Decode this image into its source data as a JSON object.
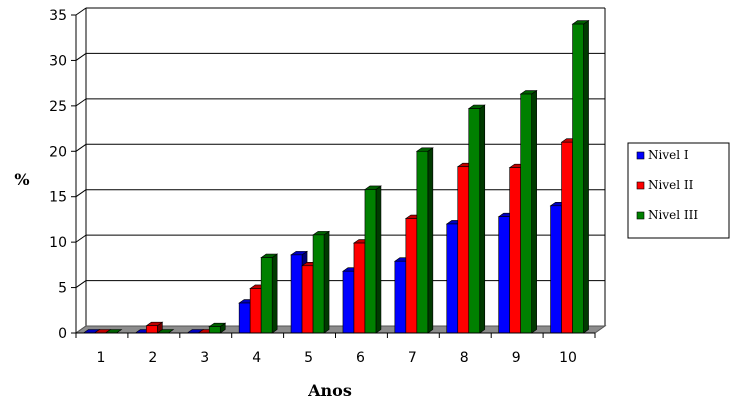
{
  "chart_data": {
    "type": "bar",
    "title": "",
    "xlabel": "Anos",
    "ylabel": "%",
    "categories": [
      "1",
      "2",
      "3",
      "4",
      "5",
      "6",
      "7",
      "8",
      "9",
      "10"
    ],
    "ylim": [
      0,
      35
    ],
    "yticks": [
      "0",
      "5",
      "10",
      "15",
      "20",
      "25",
      "30",
      "35"
    ],
    "grid": true,
    "legend_position": "right",
    "series": [
      {
        "name": "Nivel I",
        "color": "#0000ff",
        "values": [
          0,
          0,
          0,
          3.3,
          8.6,
          6.8,
          7.9,
          12,
          12.8,
          14
        ]
      },
      {
        "name": "Nivel II",
        "color": "#ff0000",
        "values": [
          0,
          0.8,
          0,
          4.9,
          7.4,
          9.9,
          12.6,
          18.3,
          18.2,
          21
        ]
      },
      {
        "name": "Nivel III",
        "color": "#008000",
        "values": [
          0,
          0,
          0.7,
          8.3,
          10.8,
          15.8,
          20,
          24.7,
          26.3,
          34
        ]
      }
    ]
  }
}
